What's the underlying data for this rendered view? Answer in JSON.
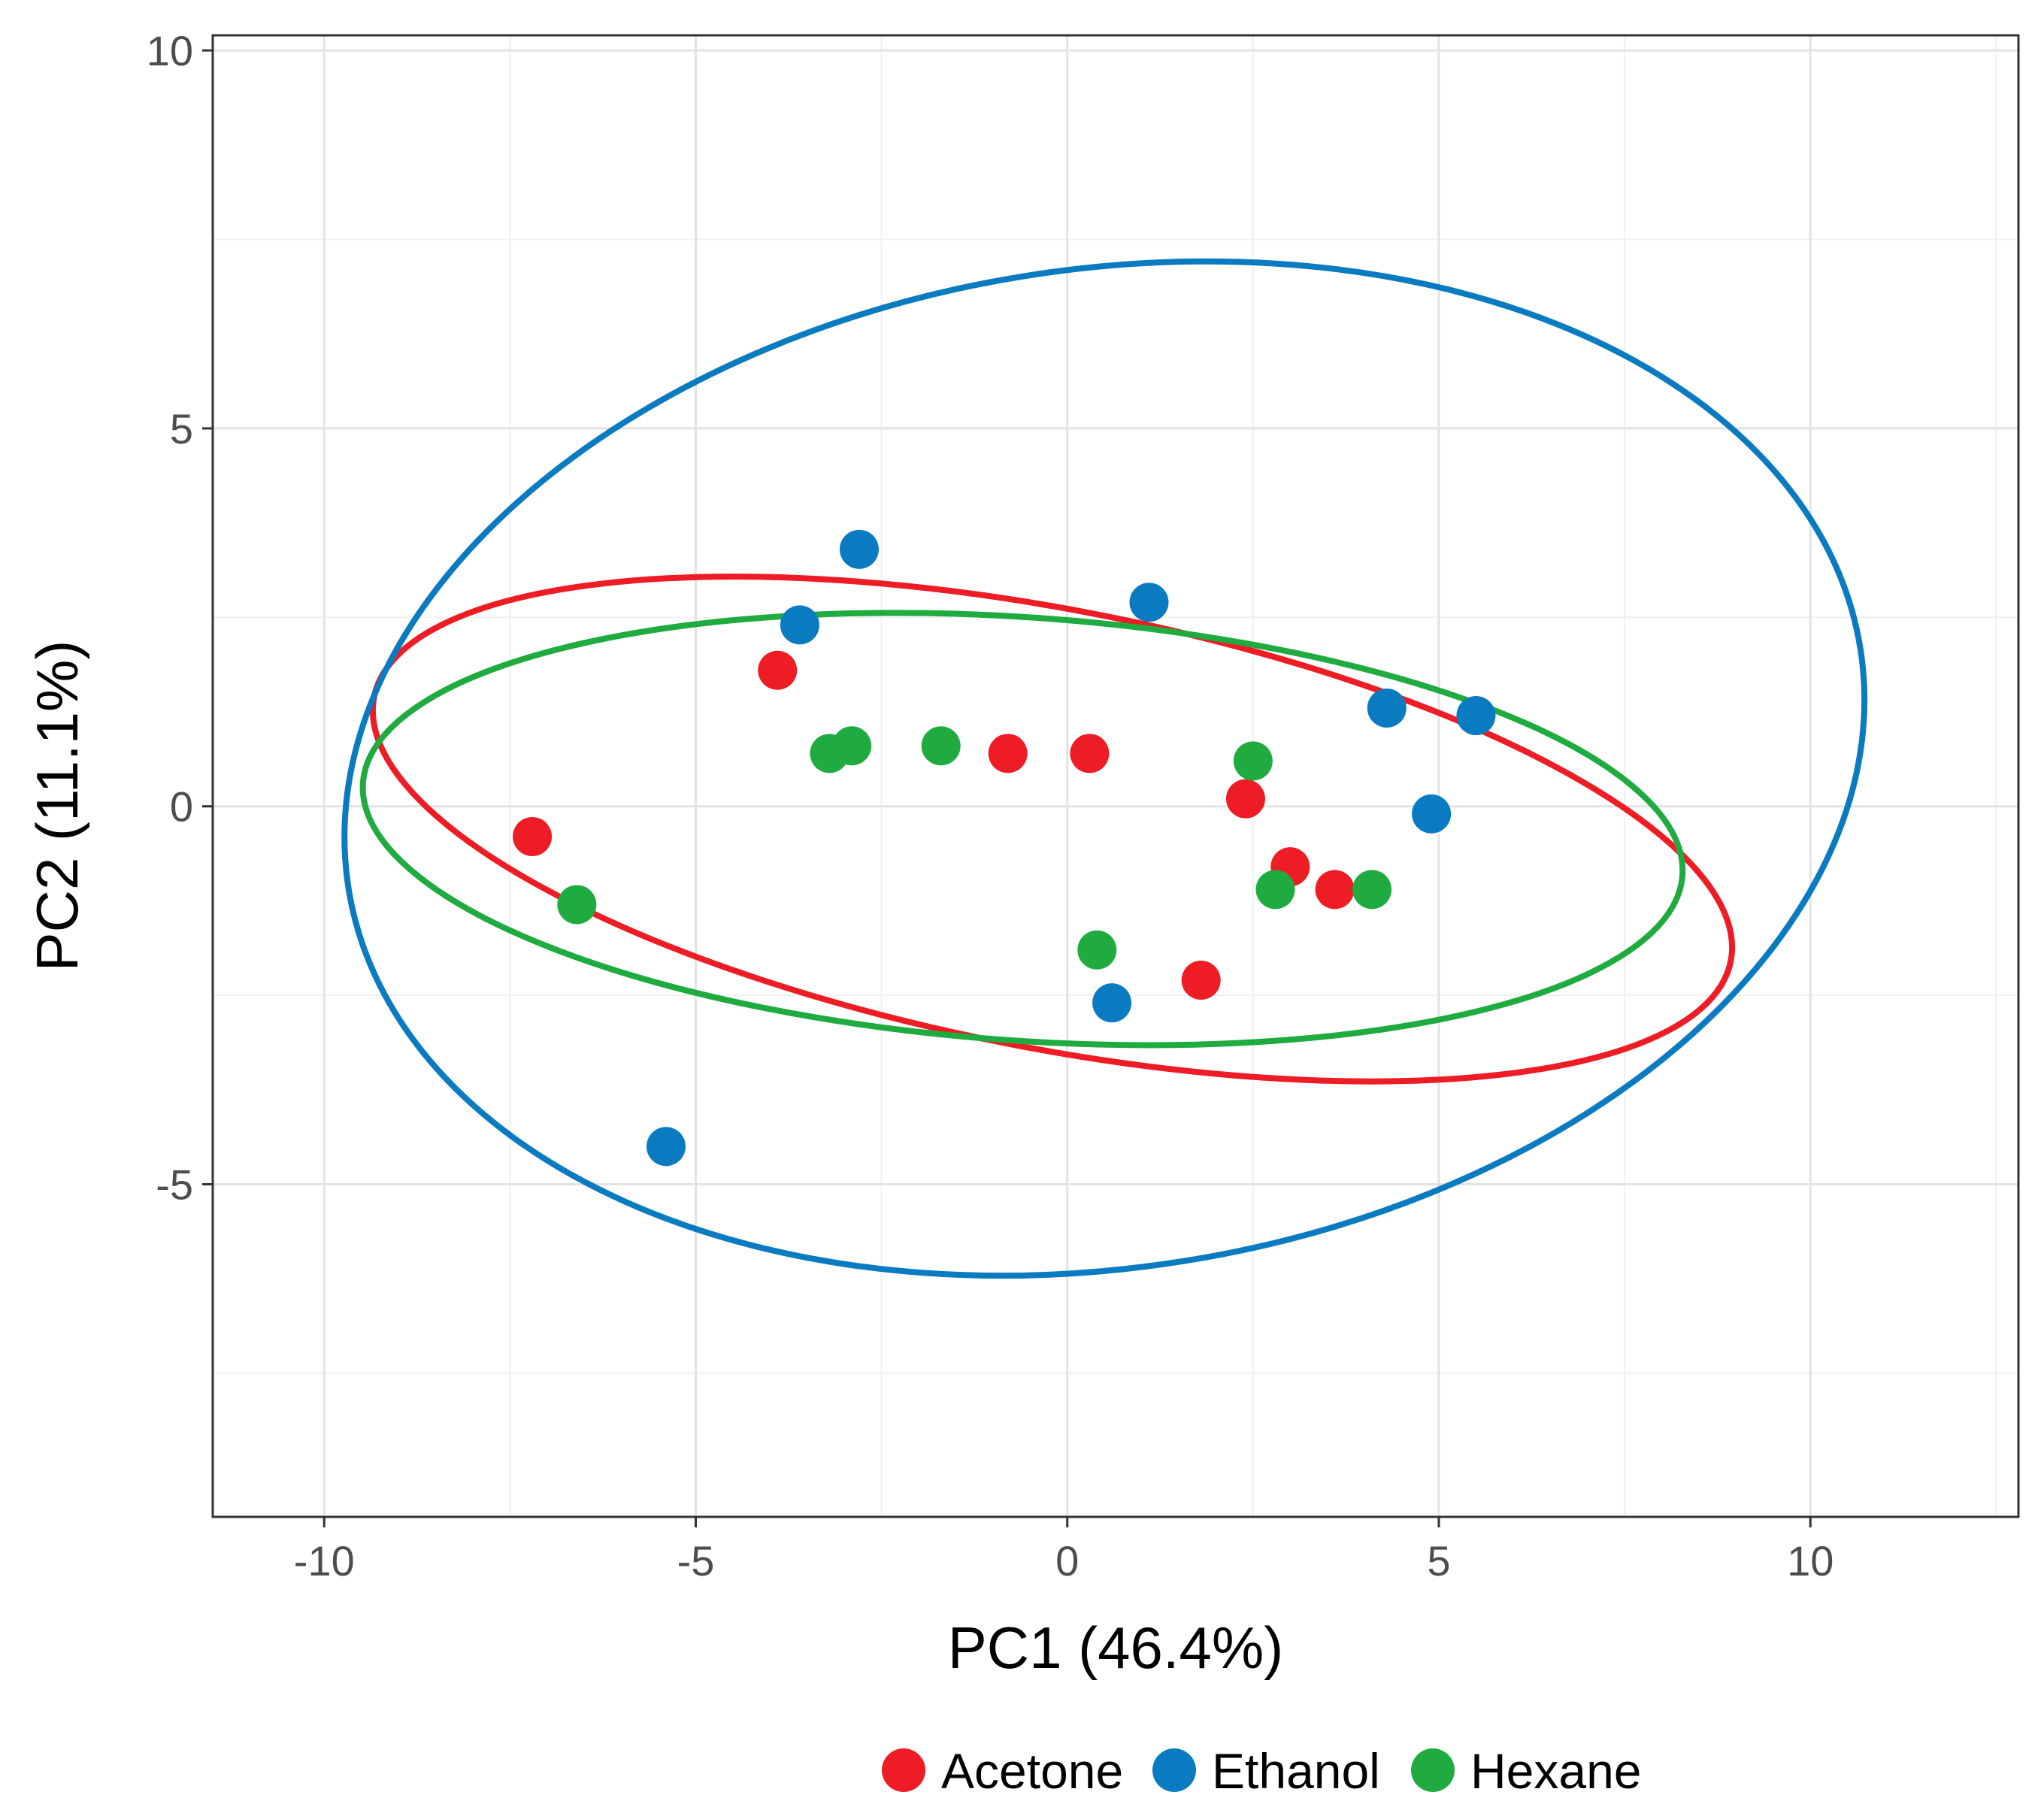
{
  "chart_data": {
    "type": "scatter",
    "xlabel": "PC1 (46.4%)",
    "ylabel": "PC2 (11.1%)",
    "xlim": [
      -11.5,
      12.8
    ],
    "ylim": [
      -9.4,
      10.2
    ],
    "x_ticks": [
      -10,
      -5,
      0,
      5,
      10
    ],
    "y_ticks": [
      -5,
      0,
      5,
      10
    ],
    "x_tick_labels": [
      "-10",
      "-5",
      "0",
      "5",
      "10"
    ],
    "y_tick_labels": [
      "-5",
      "0",
      "5",
      "10"
    ],
    "grid": true,
    "legend_position": "bottom",
    "series": [
      {
        "name": "Acetone",
        "color": "#ee1c25",
        "points": [
          {
            "x": -7.2,
            "y": -0.4
          },
          {
            "x": -3.9,
            "y": 1.8
          },
          {
            "x": -0.8,
            "y": 0.7
          },
          {
            "x": 0.3,
            "y": 0.7
          },
          {
            "x": 2.4,
            "y": 0.1
          },
          {
            "x": 3.0,
            "y": -0.8
          },
          {
            "x": 3.6,
            "y": -1.1
          },
          {
            "x": 1.8,
            "y": -2.3
          }
        ],
        "ellipse": {
          "cx": -0.2,
          "cy": -0.3,
          "rx": 9.3,
          "ry": 2.9,
          "angle_deg": -11
        }
      },
      {
        "name": "Ethanol",
        "color": "#0b7bc1",
        "points": [
          {
            "x": -2.8,
            "y": 3.4
          },
          {
            "x": -3.6,
            "y": 2.4
          },
          {
            "x": 1.1,
            "y": 2.7
          },
          {
            "x": 4.3,
            "y": 1.3
          },
          {
            "x": 5.5,
            "y": 1.2
          },
          {
            "x": 4.9,
            "y": -0.1
          },
          {
            "x": 0.6,
            "y": -2.6
          },
          {
            "x": -5.4,
            "y": -4.5
          }
        ],
        "ellipse": {
          "cx": 0.5,
          "cy": 0.5,
          "rx": 10.3,
          "ry": 6.6,
          "angle_deg": 9
        }
      },
      {
        "name": "Hexane",
        "color": "#1fab40",
        "points": [
          {
            "x": -3.2,
            "y": 0.7
          },
          {
            "x": -2.9,
            "y": 0.8
          },
          {
            "x": -1.7,
            "y": 0.8
          },
          {
            "x": 2.5,
            "y": 0.6
          },
          {
            "x": 2.8,
            "y": -1.1
          },
          {
            "x": 4.1,
            "y": -1.1
          },
          {
            "x": -6.6,
            "y": -1.3
          },
          {
            "x": 0.4,
            "y": -1.9
          }
        ],
        "ellipse": {
          "cx": -0.6,
          "cy": -0.3,
          "rx": 8.9,
          "ry": 2.8,
          "angle_deg": -4
        }
      }
    ]
  }
}
